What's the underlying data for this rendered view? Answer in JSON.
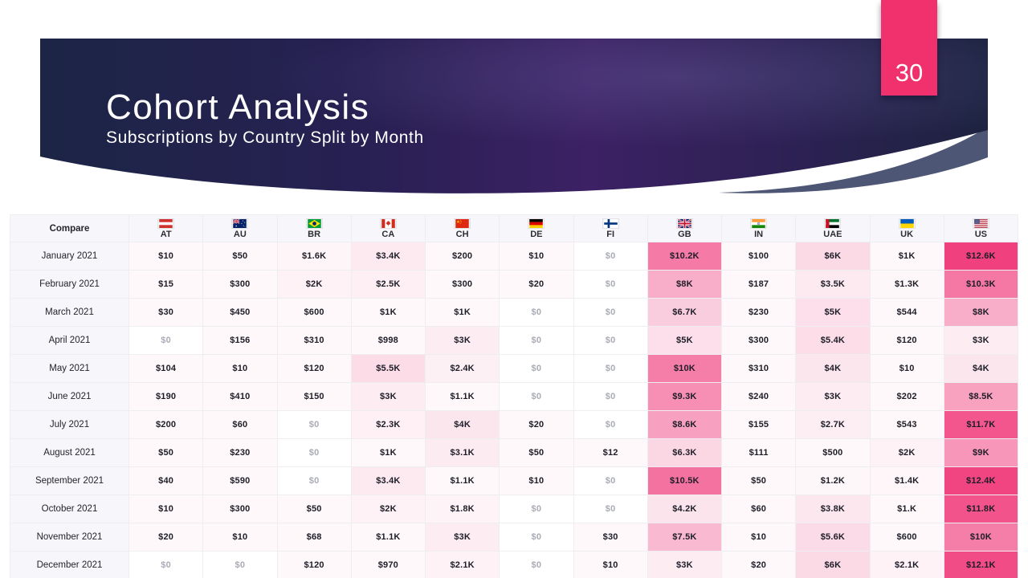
{
  "slide": {
    "page_number": "30",
    "title": "Cohort Analysis",
    "subtitle": "Subscriptions by Country Split by Month"
  },
  "table": {
    "compare_label": "Compare",
    "columns": [
      {
        "code": "AT",
        "flag": "austria-flag-icon"
      },
      {
        "code": "AU",
        "flag": "australia-flag-icon"
      },
      {
        "code": "BR",
        "flag": "brazil-flag-icon"
      },
      {
        "code": "CA",
        "flag": "canada-flag-icon"
      },
      {
        "code": "CH",
        "flag": "china-flag-icon"
      },
      {
        "code": "DE",
        "flag": "germany-flag-icon"
      },
      {
        "code": "FI",
        "flag": "finland-flag-icon"
      },
      {
        "code": "GB",
        "flag": "great-britain-flag-icon"
      },
      {
        "code": "IN",
        "flag": "india-flag-icon"
      },
      {
        "code": "UAE",
        "flag": "uae-flag-icon"
      },
      {
        "code": "UK",
        "flag": "ukraine-flag-icon"
      },
      {
        "code": "US",
        "flag": "usa-flag-icon"
      }
    ],
    "rows": [
      {
        "label": "January 2021",
        "values": [
          "$10",
          "$50",
          "$1.6K",
          "$3.4K",
          "$200",
          "$10",
          "$0",
          "$10.2K",
          "$100",
          "$6K",
          "$1K",
          "$12.6K"
        ]
      },
      {
        "label": "February 2021",
        "values": [
          "$15",
          "$300",
          "$2K",
          "$2.5K",
          "$300",
          "$20",
          "$0",
          "$8K",
          "$187",
          "$3.5K",
          "$1.3K",
          "$10.3K"
        ]
      },
      {
        "label": "March 2021",
        "values": [
          "$30",
          "$450",
          "$600",
          "$1K",
          "$1K",
          "$0",
          "$0",
          "$6.7K",
          "$230",
          "$5K",
          "$544",
          "$8K"
        ]
      },
      {
        "label": "April 2021",
        "values": [
          "$0",
          "$156",
          "$310",
          "$998",
          "$3K",
          "$0",
          "$0",
          "$5K",
          "$300",
          "$5.4K",
          "$120",
          "$3K"
        ]
      },
      {
        "label": "May 2021",
        "values": [
          "$104",
          "$10",
          "$120",
          "$5.5K",
          "$2.4K",
          "$0",
          "$0",
          "$10K",
          "$310",
          "$4K",
          "$10",
          "$4K"
        ]
      },
      {
        "label": "June 2021",
        "values": [
          "$190",
          "$410",
          "$150",
          "$3K",
          "$1.1K",
          "$0",
          "$0",
          "$9.3K",
          "$240",
          "$3K",
          "$202",
          "$8.5K"
        ]
      },
      {
        "label": "July 2021",
        "values": [
          "$200",
          "$60",
          "$0",
          "$2.3K",
          "$4K",
          "$20",
          "$0",
          "$8.6K",
          "$155",
          "$2.7K",
          "$543",
          "$11.7K"
        ]
      },
      {
        "label": "August 2021",
        "values": [
          "$50",
          "$230",
          "$0",
          "$1K",
          "$3.1K",
          "$50",
          "$12",
          "$6.3K",
          "$111",
          "$500",
          "$2K",
          "$9K"
        ]
      },
      {
        "label": "September 2021",
        "values": [
          "$40",
          "$590",
          "$0",
          "$3.4K",
          "$1.1K",
          "$10",
          "$0",
          "$10.5K",
          "$50",
          "$1.2K",
          "$1.4K",
          "$12.4K"
        ]
      },
      {
        "label": "October 2021",
        "values": [
          "$10",
          "$300",
          "$50",
          "$2K",
          "$1.8K",
          "$0",
          "$0",
          "$4.2K",
          "$60",
          "$3.8K",
          "$1.K",
          "$11.8K"
        ]
      },
      {
        "label": "November 2021",
        "values": [
          "$20",
          "$10",
          "$68",
          "$1.1K",
          "$3K",
          "$0",
          "$30",
          "$7.5K",
          "$10",
          "$5.6K",
          "$600",
          "$10K"
        ]
      },
      {
        "label": "December 2021",
        "values": [
          "$0",
          "$0",
          "$120",
          "$970",
          "$2.1K",
          "$0",
          "$10",
          "$3K",
          "$20",
          "$6K",
          "$2.1K",
          "$12.1K"
        ]
      }
    ]
  },
  "chart_data": {
    "type": "heatmap",
    "title": "Cohort Analysis",
    "subtitle": "Subscriptions by Country Split by Month",
    "x_categories": [
      "AT",
      "AU",
      "BR",
      "CA",
      "CH",
      "DE",
      "FI",
      "GB",
      "IN",
      "UAE",
      "UK",
      "US"
    ],
    "y_categories": [
      "January 2021",
      "February 2021",
      "March 2021",
      "April 2021",
      "May 2021",
      "June 2021",
      "July 2021",
      "August 2021",
      "September 2021",
      "October 2021",
      "November 2021",
      "December 2021"
    ],
    "values_usd": [
      [
        10,
        50,
        1600,
        3400,
        200,
        10,
        0,
        10200,
        100,
        6000,
        1000,
        12600
      ],
      [
        15,
        300,
        2000,
        2500,
        300,
        20,
        0,
        8000,
        187,
        3500,
        1300,
        10300
      ],
      [
        30,
        450,
        600,
        1000,
        1000,
        0,
        0,
        6700,
        230,
        5000,
        544,
        8000
      ],
      [
        0,
        156,
        310,
        998,
        3000,
        0,
        0,
        5000,
        300,
        5400,
        120,
        3000
      ],
      [
        104,
        10,
        120,
        5500,
        2400,
        0,
        0,
        10000,
        310,
        4000,
        10,
        4000
      ],
      [
        190,
        410,
        150,
        3000,
        1100,
        0,
        0,
        9300,
        240,
        3000,
        202,
        8500
      ],
      [
        200,
        60,
        0,
        2300,
        4000,
        20,
        0,
        8600,
        155,
        2700,
        543,
        11700
      ],
      [
        50,
        230,
        0,
        1000,
        3100,
        50,
        12,
        6300,
        111,
        500,
        2000,
        9000
      ],
      [
        40,
        590,
        0,
        3400,
        1100,
        10,
        0,
        10500,
        50,
        1200,
        1400,
        12400
      ],
      [
        10,
        300,
        50,
        2000,
        1800,
        0,
        0,
        4200,
        60,
        3800,
        1000,
        11800
      ],
      [
        20,
        10,
        68,
        1100,
        3000,
        0,
        30,
        7500,
        10,
        5600,
        600,
        10000
      ],
      [
        0,
        0,
        120,
        970,
        2100,
        0,
        10,
        3000,
        20,
        6000,
        2100,
        12100
      ]
    ],
    "value_range": [
      0,
      12600
    ],
    "legend": "none",
    "color_scale": [
      "#ffffff",
      "#fbd7e4",
      "#f1407e"
    ]
  },
  "colors": {
    "tab_pink": "#f0316e",
    "banner_navy": "#1c2546",
    "banner_purple": "#3c2164",
    "swoosh_slate": "#4d5674",
    "heat_mid": "#fbd7e4",
    "heat_max": "#f1407e",
    "zero_text": "#a9abb5",
    "value_text": "#1d1d27"
  }
}
